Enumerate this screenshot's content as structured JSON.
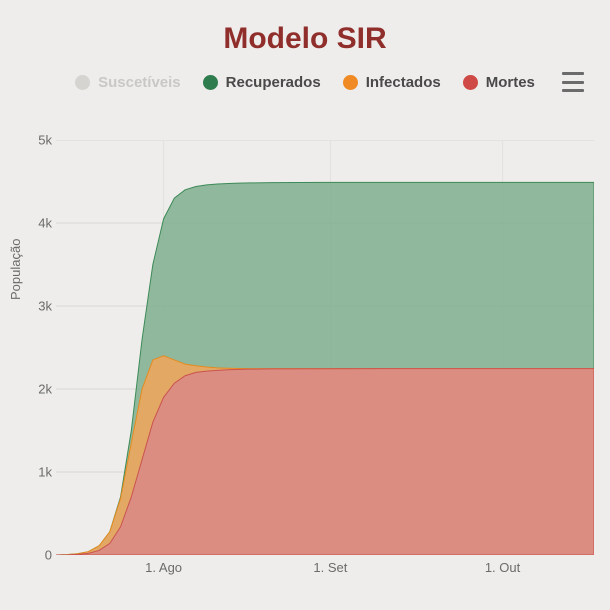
{
  "title": "Modelo SIR",
  "title_color": "#8f2e2b",
  "title_fontsize": 30,
  "background_color": "#eeedeb",
  "y_axis": {
    "label": "População",
    "min": 0,
    "max": 5000,
    "tick_step": 1000,
    "ticks": [
      0,
      1000,
      2000,
      3000,
      4000,
      5000
    ],
    "tick_labels": [
      "0",
      "1k",
      "2k",
      "3k",
      "4k",
      "5k"
    ],
    "grid_color": "#d8d7d4"
  },
  "x_axis": {
    "min": 0,
    "max": 100,
    "ticks": [
      20,
      51,
      83
    ],
    "tick_labels": [
      "1. Ago",
      "1. Set",
      "1. Out"
    ],
    "grid_color": "#e2e1de"
  },
  "legend": {
    "items": [
      {
        "key": "suscetiveis",
        "label": "Suscetíveis",
        "color": "#d5d4d1",
        "disabled": true
      },
      {
        "key": "recuperados",
        "label": "Recuperados",
        "color": "#2f7d4f",
        "disabled": false
      },
      {
        "key": "infectados",
        "label": "Infectados",
        "color": "#f08a24",
        "disabled": false
      },
      {
        "key": "mortes",
        "label": "Mortes",
        "color": "#cf4a47",
        "disabled": false
      }
    ],
    "text_color": "#4a4a4a",
    "fontsize": 15
  },
  "menu_icon_color": "#6b6b6b",
  "chart": {
    "type": "area",
    "x": [
      0,
      2,
      4,
      6,
      8,
      10,
      12,
      14,
      16,
      18,
      20,
      22,
      24,
      26,
      28,
      30,
      32,
      34,
      36,
      40,
      50,
      60,
      70,
      80,
      90,
      100
    ],
    "series": [
      {
        "key": "recuperados",
        "label": "Recuperados",
        "fill": "#7fae8e",
        "stroke": "#3d8a58",
        "fill_opacity": 0.85,
        "values": [
          0,
          5,
          15,
          40,
          110,
          280,
          700,
          1500,
          2600,
          3500,
          4050,
          4300,
          4400,
          4440,
          4460,
          4470,
          4476,
          4480,
          4483,
          4486,
          4489,
          4490,
          4490,
          4490,
          4490,
          4490
        ]
      },
      {
        "key": "infectados",
        "label": "Infectados",
        "fill": "#f2a65a",
        "stroke": "#e68a1f",
        "fill_opacity": 0.85,
        "values": [
          0,
          5,
          15,
          40,
          110,
          280,
          680,
          1350,
          2000,
          2350,
          2400,
          2350,
          2300,
          2280,
          2265,
          2255,
          2250,
          2247,
          2246,
          2245,
          2245,
          2245,
          2245,
          2245,
          2245,
          2245
        ]
      },
      {
        "key": "mortes",
        "label": "Mortes",
        "fill": "#da8886",
        "stroke": "#c95350",
        "fill_opacity": 0.85,
        "values": [
          0,
          2,
          7,
          20,
          55,
          140,
          340,
          700,
          1150,
          1600,
          1900,
          2070,
          2160,
          2200,
          2215,
          2225,
          2232,
          2236,
          2239,
          2242,
          2244,
          2245,
          2245,
          2245,
          2245,
          2245
        ]
      }
    ]
  }
}
